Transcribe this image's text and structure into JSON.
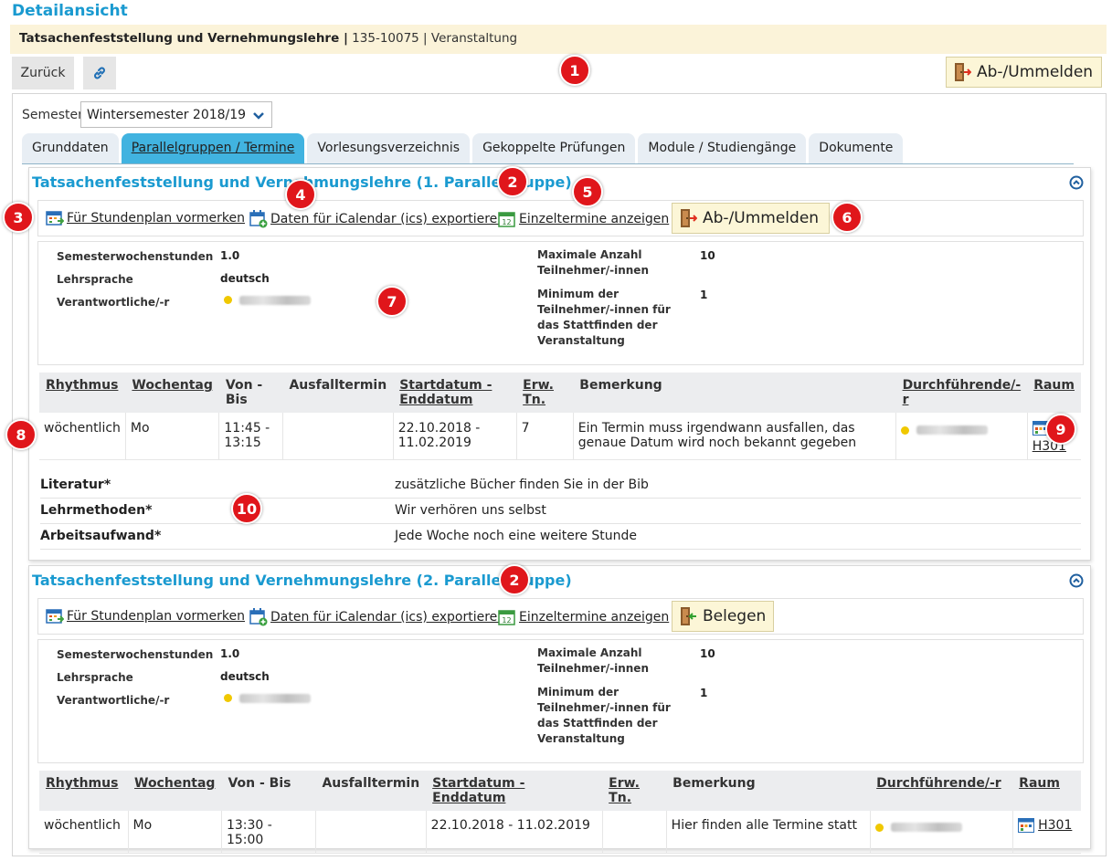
{
  "page": {
    "title": "Detailansicht",
    "course_name": "Tatsachenfeststellung und Vernehmungslehre",
    "course_meta": " 135-10075 | Veranstaltung"
  },
  "toolbar": {
    "back_label": "Zurück",
    "register_label": "Ab-/Ummelden"
  },
  "semester": {
    "label": "Semester",
    "selected": "Wintersemester 2018/19"
  },
  "tabs": [
    {
      "label": "Grunddaten"
    },
    {
      "label": "Parallelgruppen / Termine",
      "active": true
    },
    {
      "label": "Vorlesungsverzeichnis"
    },
    {
      "label": "Gekoppelte Prüfungen"
    },
    {
      "label": "Module / Studiengänge"
    },
    {
      "label": "Dokumente"
    }
  ],
  "actions": {
    "schedule": "Für Stundenplan vormerken",
    "ical": "Daten für iCalendar (ics) exportieren",
    "single_dates": "Einzeltermine anzeigen"
  },
  "detail_labels": {
    "sws": "Semesterwochenstunden",
    "language": "Lehrsprache",
    "responsible": "Verantwortliche/-r",
    "max_participants": "Maximale Anzahl Teilnehmer/-innen",
    "min_participants": "Minimum der Teilnehmer/-innen für das Stattfinden der Veranstaltung"
  },
  "table_headers": {
    "rhythm": "Rhythmus",
    "weekday": "Wochentag",
    "time": "Von - Bis",
    "cancel": "Ausfalltermin",
    "dates": "Startdatum - Enddatum",
    "expected": "Erw. Tn.",
    "remark": "Bemerkung",
    "performer": "Durchführende/-r",
    "room": "Raum"
  },
  "groups": [
    {
      "title": "Tatsachenfeststellung und Vernehmungslehre (1. Parallelgruppe)",
      "register_label": "Ab-/Ummelden",
      "sws": "1.0",
      "language": "deutsch",
      "max_participants": "10",
      "min_participants": "1",
      "row": {
        "rhythm": "wöchentlich",
        "weekday": "Mo",
        "time": "11:45 - 13:15",
        "cancel": "",
        "dates": "22.10.2018 - 11.02.2019",
        "expected": "7",
        "remark": "Ein Termin muss irgendwann ausfallen, das genaue Datum wird noch bekannt gegeben",
        "room": "H301"
      },
      "extra": [
        {
          "key": "Literatur*",
          "value": "zusätzliche Bücher finden Sie in der Bib"
        },
        {
          "key": "Lehrmethoden*",
          "value": "Wir verhören uns selbst"
        },
        {
          "key": "Arbeitsaufwand*",
          "value": "Jede Woche noch eine weitere Stunde"
        }
      ]
    },
    {
      "title": "Tatsachenfeststellung und Vernehmungslehre (2. Parallelgruppe)",
      "register_label": "Belegen",
      "sws": "1.0",
      "language": "deutsch",
      "max_participants": "10",
      "min_participants": "1",
      "row": {
        "rhythm": "wöchentlich",
        "weekday": "Mo",
        "time": "13:30 - 15:00",
        "cancel": "",
        "dates": "22.10.2018 - 11.02.2019",
        "expected": "",
        "remark": "Hier finden alle Termine statt",
        "room": "H301"
      }
    }
  ],
  "annotations": {
    "b1": "1",
    "b2": "2",
    "b3": "3",
    "b4": "4",
    "b5": "5",
    "b6": "6",
    "b7": "7",
    "b8": "8",
    "b9": "9",
    "b10": "10"
  },
  "colors": {
    "accent": "#1a9ad0",
    "tab_active": "#41b3e0",
    "info_bar": "#fbf3d9",
    "badge": "#e0161b",
    "register_button": "#fcf6d7"
  },
  "icons": [
    "link-icon",
    "door-exit-icon",
    "door-enter-icon",
    "calendar-schedule-icon",
    "calendar-export-icon",
    "calendar-single-icon",
    "collapse-up-icon",
    "room-grid-icon",
    "chevron-down-icon"
  ]
}
